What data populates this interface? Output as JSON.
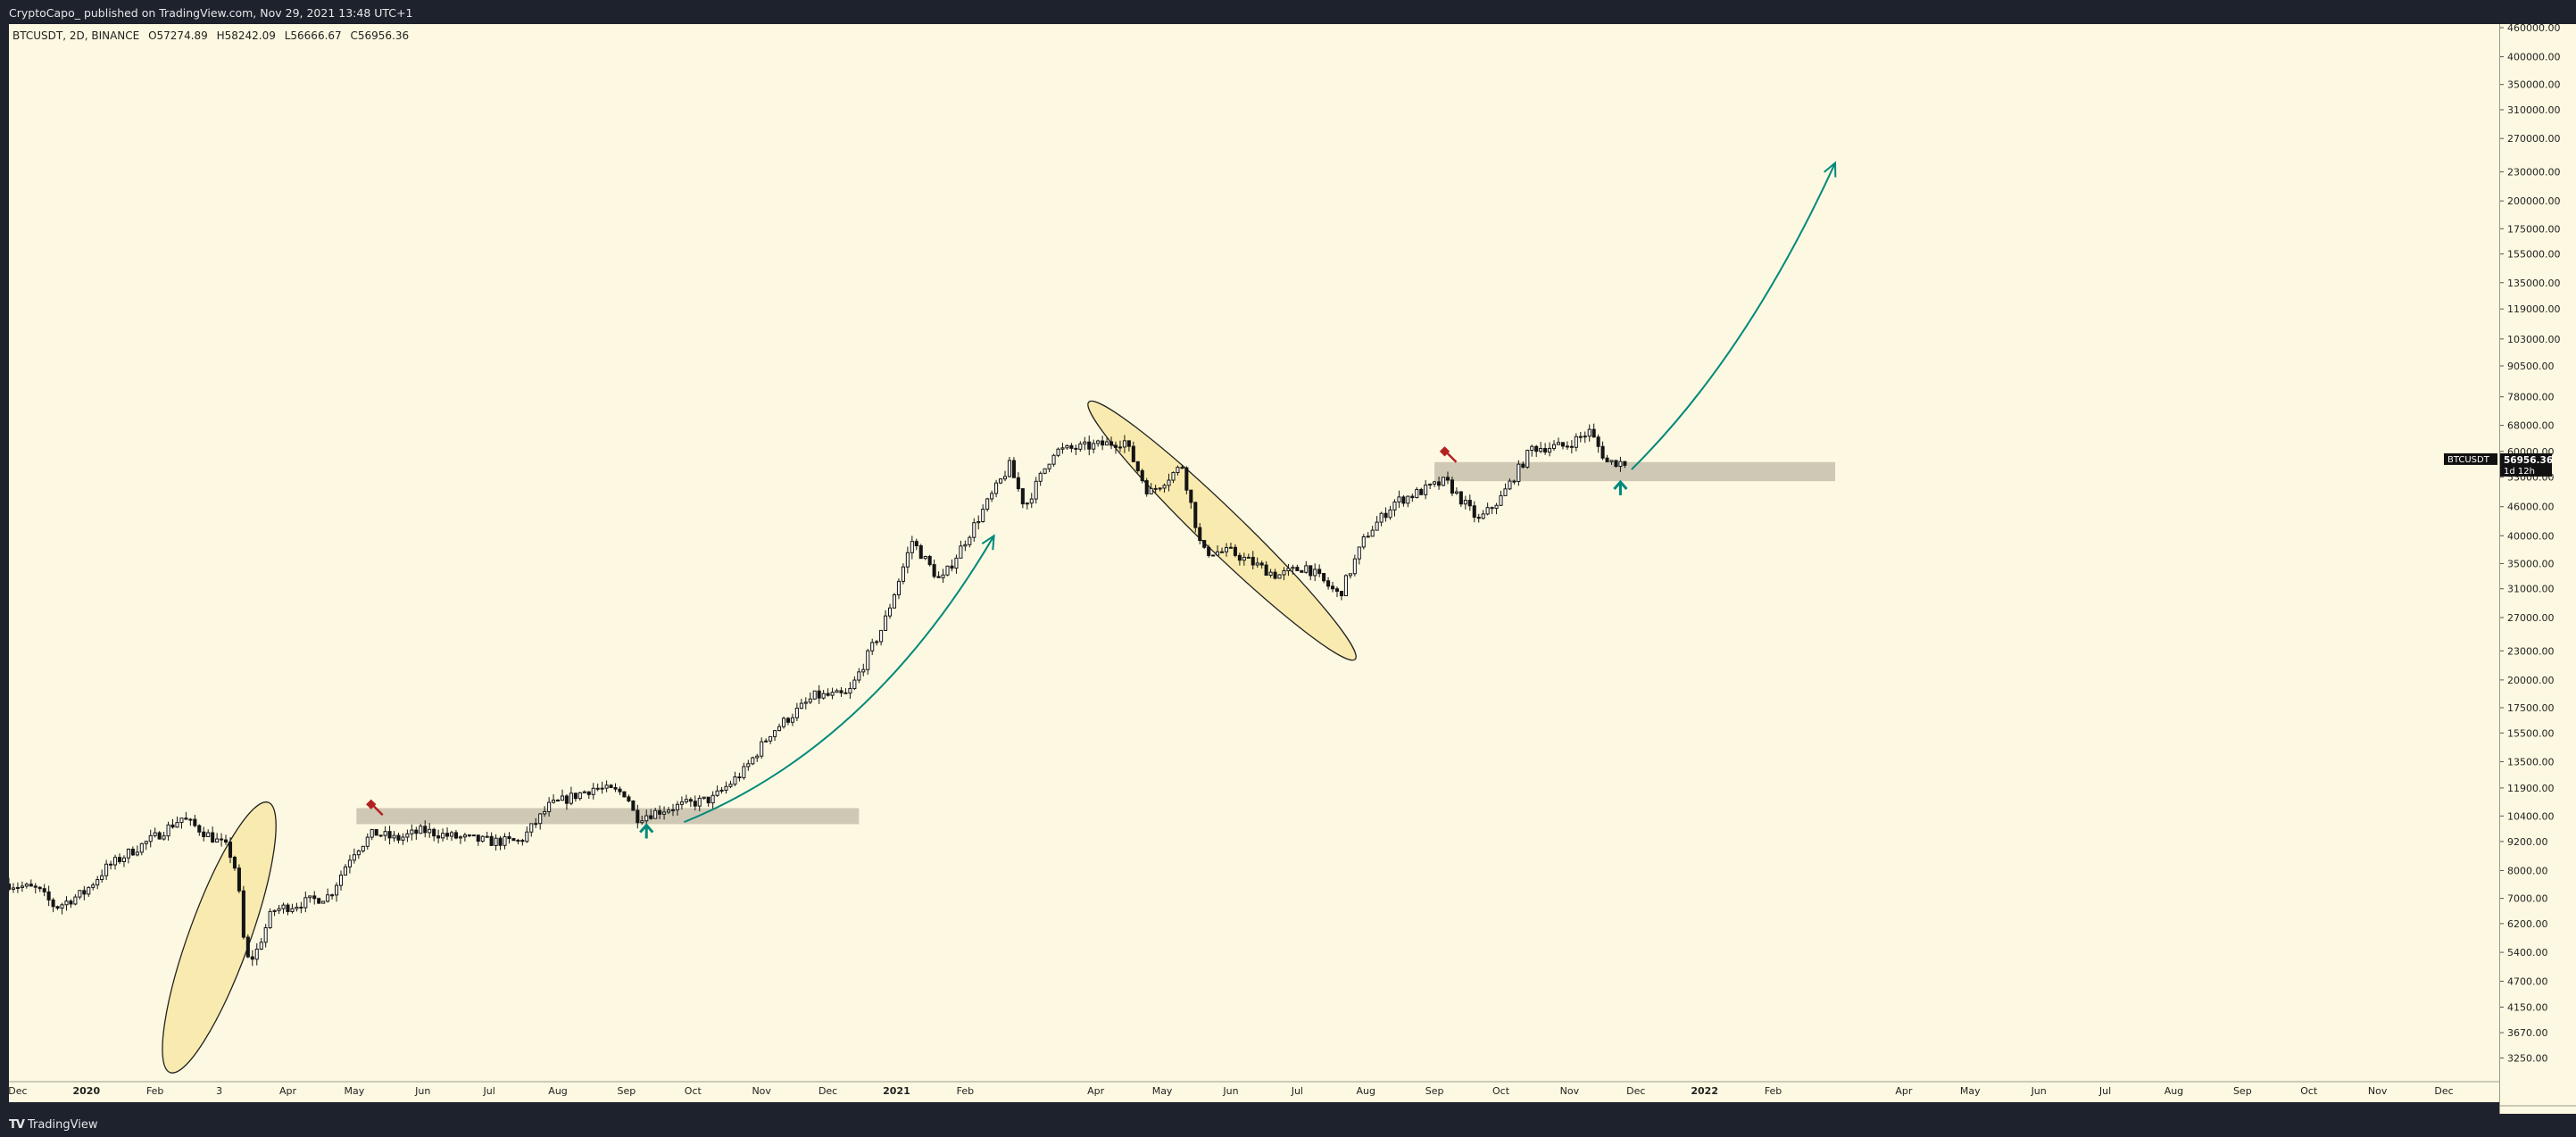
{
  "header": {
    "publish_line": "CryptoCapo_ published on TradingView.com, Nov 29, 2021 13:48 UTC+1"
  },
  "legend": {
    "symbol": "BTCUSDT, 2D, BINANCE",
    "open": "O57274.89",
    "high": "H58242.09",
    "low": "L56666.67",
    "close": "C56956.36"
  },
  "price_tag": {
    "symbol": "BTCUSDT",
    "price": "56956.36",
    "countdown": "1d 12h"
  },
  "footer": {
    "logo_mark": "TV",
    "brand": "TradingView"
  },
  "colors": {
    "background": "#fdf8e1",
    "candle": "#151515",
    "zone": "#c6c0ac",
    "arrow": "#00897b",
    "ellipse_fill": "#f7e79e",
    "flag": "#b22222"
  },
  "chart_data": {
    "type": "candlestick",
    "symbol": "BTCUSDT",
    "interval": "2D",
    "exchange": "BINANCE",
    "y_scale": "log",
    "ylim": [
      2900,
      460000
    ],
    "y_ticks": [
      {
        "v": 460000,
        "l": "460000.00"
      },
      {
        "v": 400000,
        "l": "400000.00"
      },
      {
        "v": 350000,
        "l": "350000.00"
      },
      {
        "v": 310000,
        "l": "310000.00"
      },
      {
        "v": 270000,
        "l": "270000.00"
      },
      {
        "v": 230000,
        "l": "230000.00"
      },
      {
        "v": 200000,
        "l": "200000.00"
      },
      {
        "v": 175000,
        "l": "175000.00"
      },
      {
        "v": 155000,
        "l": "155000.00"
      },
      {
        "v": 135000,
        "l": "135000.00"
      },
      {
        "v": 119000,
        "l": "119000.00"
      },
      {
        "v": 103000,
        "l": "103000.00"
      },
      {
        "v": 90500,
        "l": "90500.00"
      },
      {
        "v": 78000,
        "l": "78000.00"
      },
      {
        "v": 68000,
        "l": "68000.00"
      },
      {
        "v": 60000,
        "l": "60000.00"
      },
      {
        "v": 53000,
        "l": "53000.00"
      },
      {
        "v": 46000,
        "l": "46000.00"
      },
      {
        "v": 40000,
        "l": "40000.00"
      },
      {
        "v": 35000,
        "l": "35000.00"
      },
      {
        "v": 31000,
        "l": "31000.00"
      },
      {
        "v": 27000,
        "l": "27000.00"
      },
      {
        "v": 23000,
        "l": "23000.00"
      },
      {
        "v": 20000,
        "l": "20000.00"
      },
      {
        "v": 17500,
        "l": "17500.00"
      },
      {
        "v": 15500,
        "l": "15500.00"
      },
      {
        "v": 13500,
        "l": "13500.00"
      },
      {
        "v": 11900,
        "l": "11900.00"
      },
      {
        "v": 10400,
        "l": "10400.00"
      },
      {
        "v": 9200,
        "l": "9200.00"
      },
      {
        "v": 8000,
        "l": "8000.00"
      },
      {
        "v": 7000,
        "l": "7000.00"
      },
      {
        "v": 6200,
        "l": "6200.00"
      },
      {
        "v": 5400,
        "l": "5400.00"
      },
      {
        "v": 4700,
        "l": "4700.00"
      },
      {
        "v": 4150,
        "l": "4150.00"
      },
      {
        "v": 3670,
        "l": "3670.00"
      },
      {
        "v": 3250,
        "l": "3250.00"
      }
    ],
    "x_start": "2019-11-27",
    "x_end": "2022-12-26",
    "x_ticks": [
      {
        "d": "2019-12-01",
        "l": "Dec",
        "bold": false
      },
      {
        "d": "2020-01-01",
        "l": "2020",
        "bold": true
      },
      {
        "d": "2020-02-01",
        "l": "Feb",
        "bold": false
      },
      {
        "d": "2020-03-01",
        "l": "3",
        "bold": false
      },
      {
        "d": "2020-04-01",
        "l": "Apr",
        "bold": false
      },
      {
        "d": "2020-05-01",
        "l": "May",
        "bold": false
      },
      {
        "d": "2020-06-01",
        "l": "Jun",
        "bold": false
      },
      {
        "d": "2020-07-01",
        "l": "Jul",
        "bold": false
      },
      {
        "d": "2020-08-01",
        "l": "Aug",
        "bold": false
      },
      {
        "d": "2020-09-01",
        "l": "Sep",
        "bold": false
      },
      {
        "d": "2020-10-01",
        "l": "Oct",
        "bold": false
      },
      {
        "d": "2020-11-01",
        "l": "Nov",
        "bold": false
      },
      {
        "d": "2020-12-01",
        "l": "Dec",
        "bold": false
      },
      {
        "d": "2021-01-01",
        "l": "2021",
        "bold": true
      },
      {
        "d": "2021-02-01",
        "l": "Feb",
        "bold": false
      },
      {
        "d": "2021-04-01",
        "l": "Apr",
        "bold": false
      },
      {
        "d": "2021-05-01",
        "l": "May",
        "bold": false
      },
      {
        "d": "2021-06-01",
        "l": "Jun",
        "bold": false
      },
      {
        "d": "2021-07-01",
        "l": "Jul",
        "bold": false
      },
      {
        "d": "2021-08-01",
        "l": "Aug",
        "bold": false
      },
      {
        "d": "2021-09-01",
        "l": "Sep",
        "bold": false
      },
      {
        "d": "2021-10-01",
        "l": "Oct",
        "bold": false
      },
      {
        "d": "2021-11-01",
        "l": "Nov",
        "bold": false
      },
      {
        "d": "2021-12-01",
        "l": "Dec",
        "bold": false
      },
      {
        "d": "2022-01-01",
        "l": "2022",
        "bold": true
      },
      {
        "d": "2022-02-01",
        "l": "Feb",
        "bold": false
      },
      {
        "d": "2022-04-01",
        "l": "Apr",
        "bold": false
      },
      {
        "d": "2022-05-01",
        "l": "May",
        "bold": false
      },
      {
        "d": "2022-06-01",
        "l": "Jun",
        "bold": false
      },
      {
        "d": "2022-07-01",
        "l": "Jul",
        "bold": false
      },
      {
        "d": "2022-08-01",
        "l": "Aug",
        "bold": false
      },
      {
        "d": "2022-09-01",
        "l": "Sep",
        "bold": false
      },
      {
        "d": "2022-10-01",
        "l": "Oct",
        "bold": false
      },
      {
        "d": "2022-11-01",
        "l": "Nov",
        "bold": false
      },
      {
        "d": "2022-12-01",
        "l": "Dec",
        "bold": false
      }
    ],
    "close_path": [
      [
        "2019-11-27",
        7500
      ],
      [
        "2019-12-10",
        7300
      ],
      [
        "2019-12-18",
        6700
      ],
      [
        "2019-12-31",
        7200
      ],
      [
        "2020-01-10",
        8100
      ],
      [
        "2020-01-20",
        8700
      ],
      [
        "2020-02-01",
        9400
      ],
      [
        "2020-02-13",
        10300
      ],
      [
        "2020-02-22",
        9700
      ],
      [
        "2020-03-05",
        8900
      ],
      [
        "2020-03-09",
        7900
      ],
      [
        "2020-03-13",
        5200
      ],
      [
        "2020-03-17",
        5300
      ],
      [
        "2020-03-25",
        6600
      ],
      [
        "2020-04-05",
        6800
      ],
      [
        "2020-04-20",
        7100
      ],
      [
        "2020-04-30",
        8700
      ],
      [
        "2020-05-10",
        9600
      ],
      [
        "2020-05-20",
        9300
      ],
      [
        "2020-06-01",
        9700
      ],
      [
        "2020-06-15",
        9400
      ],
      [
        "2020-07-01",
        9200
      ],
      [
        "2020-07-15",
        9200
      ],
      [
        "2020-07-28",
        10900
      ],
      [
        "2020-08-17",
        11900
      ],
      [
        "2020-09-01",
        11600
      ],
      [
        "2020-09-05",
        10300
      ],
      [
        "2020-09-20",
        10800
      ],
      [
        "2020-10-10",
        11300
      ],
      [
        "2020-10-24",
        12900
      ],
      [
        "2020-11-05",
        15500
      ],
      [
        "2020-11-25",
        18500
      ],
      [
        "2020-12-10",
        18600
      ],
      [
        "2020-12-26",
        26000
      ],
      [
        "2021-01-08",
        39000
      ],
      [
        "2021-01-21",
        32000
      ],
      [
        "2021-02-10",
        46000
      ],
      [
        "2021-02-21",
        56000
      ],
      [
        "2021-02-28",
        46000
      ],
      [
        "2021-03-13",
        60000
      ],
      [
        "2021-04-14",
        63000
      ],
      [
        "2021-04-25",
        49000
      ],
      [
        "2021-05-10",
        56000
      ],
      [
        "2021-05-19",
        37000
      ],
      [
        "2021-06-01",
        37000
      ],
      [
        "2021-06-22",
        33000
      ],
      [
        "2021-07-05",
        34500
      ],
      [
        "2021-07-20",
        30000
      ],
      [
        "2021-08-01",
        40000
      ],
      [
        "2021-08-14",
        47000
      ],
      [
        "2021-09-06",
        52000
      ],
      [
        "2021-09-21",
        43000
      ],
      [
        "2021-10-01",
        48000
      ],
      [
        "2021-10-15",
        61000
      ],
      [
        "2021-10-30",
        61500
      ],
      [
        "2021-11-10",
        66000
      ],
      [
        "2021-11-18",
        57000
      ],
      [
        "2021-11-27",
        56956
      ]
    ],
    "annotations": {
      "support_zones": [
        {
          "from": "2020-05-02",
          "to": "2020-12-15",
          "low": 10000,
          "high": 10800
        },
        {
          "from": "2021-09-01",
          "to": "2022-03-01",
          "low": 52000,
          "high": 57000
        }
      ],
      "ellipses": [
        {
          "center_date": "2020-03-01",
          "center_price": 5800,
          "semi_width_days": 8,
          "semi_height_log10": 0.3,
          "tilt_deg": -70
        },
        {
          "center_date": "2021-05-28",
          "center_price": 41000,
          "semi_width_days": 36,
          "semi_height_log10": 0.08,
          "tilt_deg": 44
        }
      ],
      "projections": [
        {
          "points": [
            [
              "2020-09-27",
              10100
            ],
            [
              "2020-12-20",
              14500
            ],
            [
              "2021-02-14",
              40000
            ]
          ]
        },
        {
          "points": [
            [
              "2021-11-29",
              55000
            ],
            [
              "2022-01-20",
              95000
            ],
            [
              "2022-03-01",
              240000
            ]
          ]
        }
      ],
      "up_arrows": [
        {
          "date": "2020-09-10",
          "price": 9700
        },
        {
          "date": "2021-11-24",
          "price": 50500
        }
      ],
      "flags": [
        {
          "date": "2020-05-09",
          "price": 11000
        },
        {
          "date": "2021-09-06",
          "price": 60000
        }
      ]
    }
  }
}
